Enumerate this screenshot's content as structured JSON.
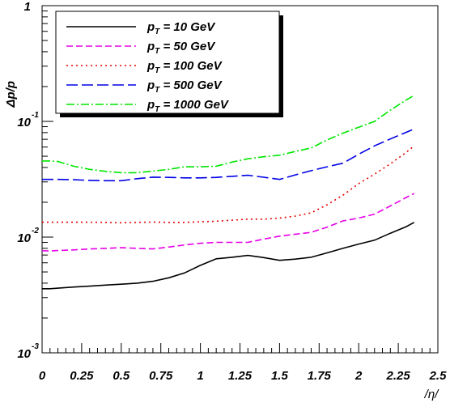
{
  "chart_data": {
    "type": "line",
    "xlabel": "/η/",
    "ylabel": "Δp/p",
    "xlim": [
      0,
      2.5
    ],
    "ylim": [
      0.001,
      1
    ],
    "yscale": "log",
    "grid": false,
    "legend_position": "top-left",
    "x_ticks": [
      "0",
      "0.25",
      "0.5",
      "0.75",
      "1",
      "1.25",
      "1.5",
      "1.75",
      "2",
      "2.25",
      "2.5"
    ],
    "y_ticks": [
      {
        "base": "10",
        "exp": "-3",
        "value": 0.001
      },
      {
        "base": "10",
        "exp": "-2",
        "value": 0.01
      },
      {
        "base": "10",
        "exp": "-1",
        "value": 0.1
      },
      {
        "base": "1",
        "exp": "",
        "value": 1
      }
    ],
    "series": [
      {
        "name": "p_T = 10 GeV",
        "legend_main": "p",
        "legend_sub": "T",
        "legend_rest": " = 10 GeV",
        "color": "#000000",
        "dash": "",
        "x": [
          0.0,
          0.05,
          0.1,
          0.2,
          0.3,
          0.4,
          0.5,
          0.6,
          0.7,
          0.8,
          0.9,
          1.0,
          1.1,
          1.2,
          1.3,
          1.4,
          1.5,
          1.6,
          1.7,
          1.8,
          1.9,
          2.0,
          2.1,
          2.2,
          2.3,
          2.35
        ],
        "y": [
          0.00358,
          0.00358,
          0.00362,
          0.0037,
          0.00377,
          0.00385,
          0.00392,
          0.004,
          0.00415,
          0.00445,
          0.0049,
          0.0057,
          0.0065,
          0.0067,
          0.00695,
          0.00665,
          0.0063,
          0.00645,
          0.0067,
          0.0073,
          0.008,
          0.0087,
          0.0094,
          0.0108,
          0.0123,
          0.0134
        ]
      },
      {
        "name": "p_T = 50 GeV",
        "legend_main": "p",
        "legend_sub": "T",
        "legend_rest": " = 50 GeV",
        "color": "#e600e6",
        "dash": "8,4",
        "x": [
          0.0,
          0.05,
          0.1,
          0.2,
          0.3,
          0.4,
          0.5,
          0.6,
          0.7,
          0.8,
          0.9,
          1.0,
          1.1,
          1.2,
          1.3,
          1.4,
          1.5,
          1.6,
          1.7,
          1.8,
          1.9,
          2.0,
          2.1,
          2.2,
          2.3,
          2.35
        ],
        "y": [
          0.00762,
          0.0076,
          0.00765,
          0.00775,
          0.0079,
          0.008,
          0.0081,
          0.008,
          0.0079,
          0.0082,
          0.00855,
          0.00885,
          0.009,
          0.009,
          0.009,
          0.0096,
          0.0102,
          0.0106,
          0.011,
          0.0122,
          0.0138,
          0.0146,
          0.0158,
          0.0186,
          0.022,
          0.0238
        ]
      },
      {
        "name": "p_T = 100 GeV",
        "legend_main": "p",
        "legend_sub": "T",
        "legend_rest": " = 100 GeV",
        "color": "#e60000",
        "dash": "2,4",
        "x": [
          0.0,
          0.05,
          0.1,
          0.2,
          0.3,
          0.4,
          0.5,
          0.6,
          0.7,
          0.8,
          0.9,
          1.0,
          1.1,
          1.2,
          1.3,
          1.4,
          1.5,
          1.6,
          1.7,
          1.8,
          1.9,
          2.0,
          2.1,
          2.2,
          2.3,
          2.35
        ],
        "y": [
          0.01345,
          0.01345,
          0.01345,
          0.01345,
          0.01345,
          0.0134,
          0.0133,
          0.0134,
          0.0135,
          0.0134,
          0.0134,
          0.01355,
          0.0137,
          0.014,
          0.0143,
          0.0143,
          0.0146,
          0.0152,
          0.0162,
          0.019,
          0.023,
          0.029,
          0.035,
          0.043,
          0.054,
          0.0615
        ]
      },
      {
        "name": "p_T = 500 GeV",
        "legend_main": "p",
        "legend_sub": "T",
        "legend_rest": " = 500 GeV",
        "color": "#0000e6",
        "dash": "14,5",
        "x": [
          0.0,
          0.05,
          0.1,
          0.2,
          0.3,
          0.4,
          0.5,
          0.6,
          0.7,
          0.8,
          0.9,
          1.0,
          1.1,
          1.2,
          1.3,
          1.4,
          1.5,
          1.6,
          1.7,
          1.8,
          1.9,
          2.0,
          2.1,
          2.2,
          2.3,
          2.35
        ],
        "y": [
          0.0315,
          0.0315,
          0.0315,
          0.0313,
          0.0309,
          0.0307,
          0.0307,
          0.032,
          0.033,
          0.0328,
          0.0325,
          0.0325,
          0.0328,
          0.0335,
          0.0342,
          0.0329,
          0.0315,
          0.0345,
          0.0375,
          0.0405,
          0.0435,
          0.052,
          0.0615,
          0.0705,
          0.0805,
          0.086
        ]
      },
      {
        "name": "p_T = 1000 GeV",
        "legend_main": "p",
        "legend_sub": "T",
        "legend_rest": " = 1000 GeV",
        "color": "#00e600",
        "dash": "10,3,2,3",
        "x": [
          0.0,
          0.05,
          0.1,
          0.2,
          0.3,
          0.4,
          0.5,
          0.6,
          0.7,
          0.8,
          0.9,
          1.0,
          1.1,
          1.2,
          1.3,
          1.4,
          1.5,
          1.6,
          1.7,
          1.8,
          1.9,
          2.0,
          2.1,
          2.2,
          2.3,
          2.35
        ],
        "y": [
          0.0455,
          0.0455,
          0.045,
          0.041,
          0.0385,
          0.037,
          0.036,
          0.036,
          0.0372,
          0.0385,
          0.0405,
          0.0405,
          0.041,
          0.0445,
          0.0475,
          0.0495,
          0.051,
          0.055,
          0.059,
          0.069,
          0.079,
          0.089,
          0.1,
          0.125,
          0.153,
          0.168
        ]
      }
    ]
  }
}
